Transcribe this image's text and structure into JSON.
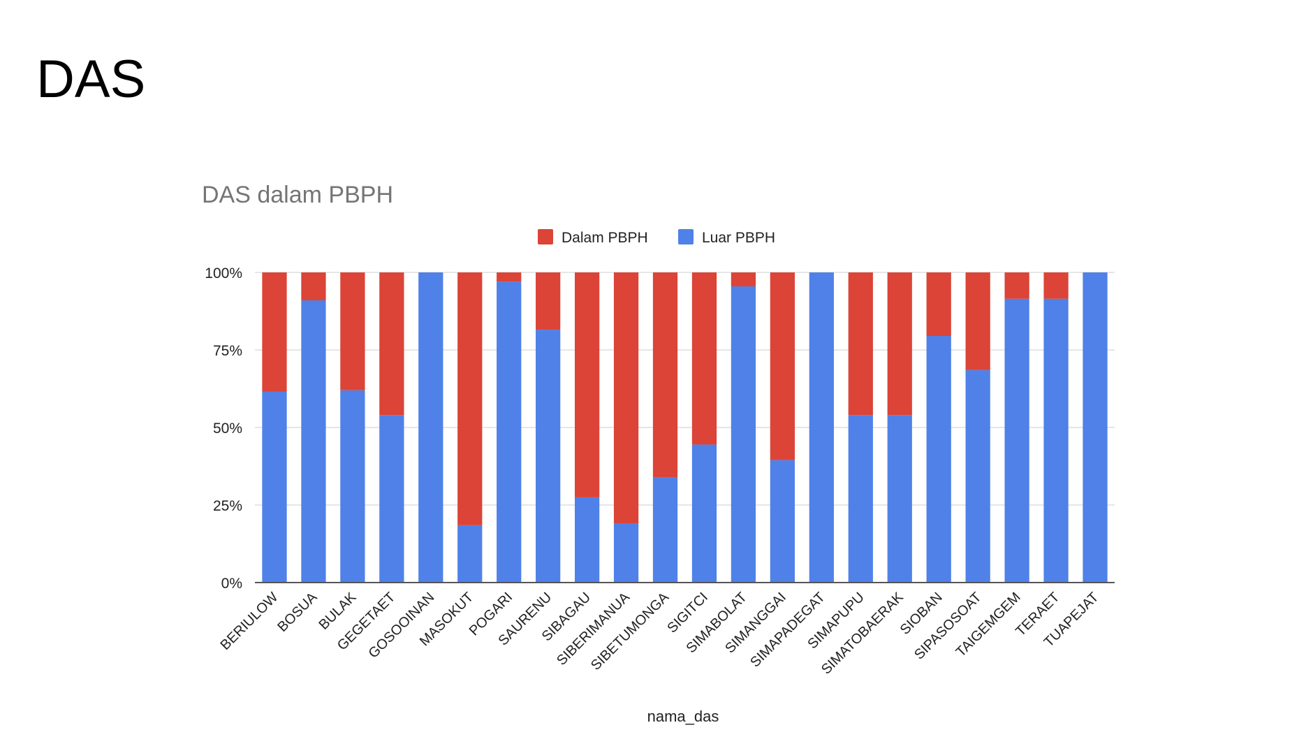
{
  "slide": {
    "title": "DAS"
  },
  "colors": {
    "dalam": "#DB4437",
    "luar": "#4F81E8",
    "grid": "#DDDDDD",
    "axis": "#555555",
    "chart_title": "#757575",
    "text": "#222222"
  },
  "chart_data": {
    "type": "bar",
    "stacked": "100%",
    "title": "DAS dalam PBPH",
    "xlabel": "nama_das",
    "ylabel": "",
    "ylim": [
      0,
      100
    ],
    "yticks": [
      "0%",
      "25%",
      "50%",
      "75%",
      "100%"
    ],
    "legend_position": "top",
    "grid": true,
    "categories": [
      "BERIULOW",
      "BOSUA",
      "BULAK",
      "GEGETAET",
      "GOSOOINAN",
      "MASOKUT",
      "POGARI",
      "SAURENU",
      "SIBAGAU",
      "SIBERIMANUA",
      "SIBETUMONGA",
      "SIGITCI",
      "SIMABOLAT",
      "SIMANGGAI",
      "SIMAPADEGAT",
      "SIMAPUPU",
      "SIMATOBAERAK",
      "SIOBAN",
      "SIPASOSOAT",
      "TAIGEMGEM",
      "TERAET",
      "TUAPEJAT"
    ],
    "series": [
      {
        "name": "Dalam PBPH",
        "color": "#DB4437",
        "values": [
          38.5,
          9,
          38,
          46,
          0,
          81.5,
          3,
          18.5,
          72.5,
          81,
          66,
          55.5,
          4.5,
          60.5,
          0,
          46,
          46,
          20.5,
          31.5,
          8.5,
          8.5,
          0
        ]
      },
      {
        "name": "Luar PBPH",
        "color": "#4F81E8",
        "values": [
          61.5,
          91,
          62,
          54,
          100,
          18.5,
          97,
          81.5,
          27.5,
          19,
          34,
          44.5,
          95.5,
          39.5,
          100,
          54,
          54,
          79.5,
          68.5,
          91.5,
          91.5,
          100
        ]
      }
    ]
  }
}
